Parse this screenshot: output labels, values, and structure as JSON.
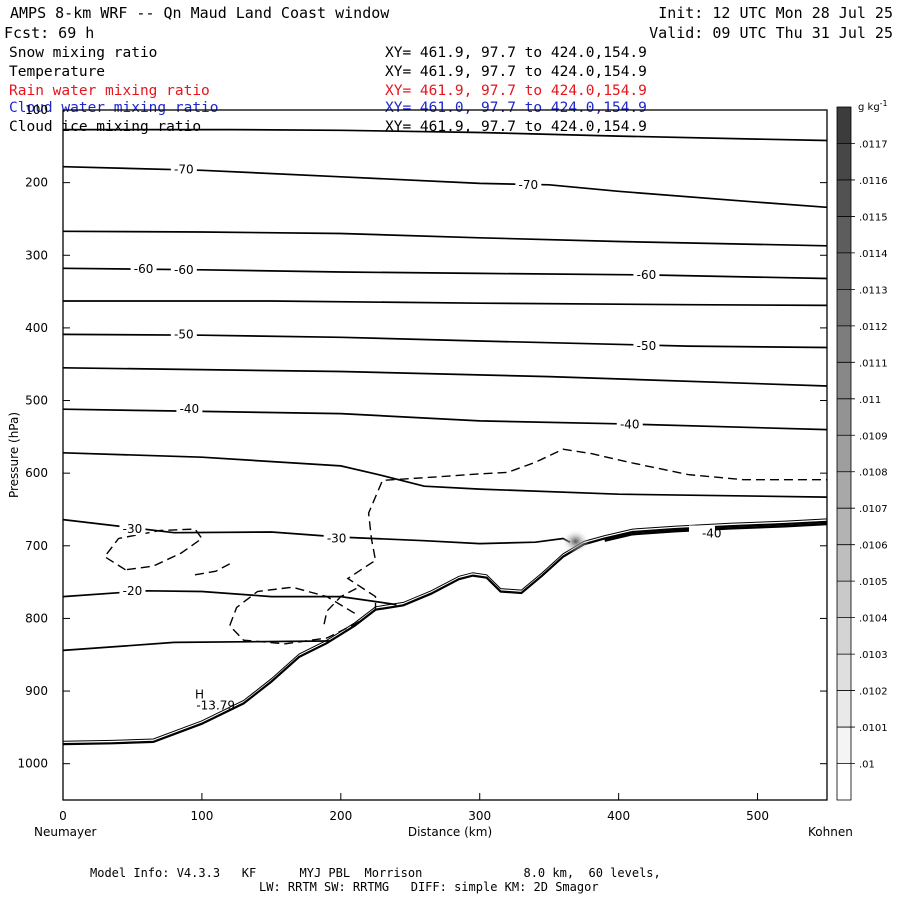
{
  "header": {
    "title": "AMPS 8-km WRF -- Qn Maud Land Coast window",
    "forecast": "Fcst:   69 h",
    "init": "Init: 12 UTC Mon 28 Jul 25",
    "valid": "Valid: 09 UTC Thu 31 Jul 25"
  },
  "fields": [
    {
      "name": "Snow mixing ratio",
      "xy": "XY= 461.9, 97.7 to 424.0,154.9",
      "color": "#000000"
    },
    {
      "name": "Temperature",
      "xy": "XY= 461.9, 97.7 to 424.0,154.9",
      "color": "#000000"
    },
    {
      "name": "Rain water mixing ratio",
      "xy": "XY= 461.9, 97.7 to 424.0,154.9",
      "color": "#e8141e"
    },
    {
      "name": "Cloud water mixing ratio",
      "xy": "XY= 461.0, 97.7 to 424.0,154.9",
      "color": "#1e28c8"
    },
    {
      "name": "Cloud ice mixing ratio",
      "xy": "XY= 461.9, 97.7 to 424.0,154.9",
      "color": "#000000"
    }
  ],
  "footer": {
    "line1": "Model Info: V4.3.3   KF      MYJ PBL  Morrison              8.0 km,  60 levels,",
    "line2": "LW: RRTM SW: RRTMG   DIFF: simple KM: 2D Smagor"
  },
  "colorbar": {
    "unit": "g kg",
    "unit_exp": "-1",
    "levels": [
      ".0117",
      ".0116",
      ".0115",
      ".0114",
      ".0113",
      ".0112",
      ".0111",
      ".011",
      ".0109",
      ".0108",
      ".0107",
      ".0106",
      ".0105",
      ".0104",
      ".0103",
      ".0102",
      ".0101",
      ".01"
    ]
  },
  "chart_data": {
    "type": "cross-section contour",
    "xlabel": "Distance (km)",
    "ylabel": "Pressure (hPa)",
    "x_left_label": "Neumayer",
    "x_right_label": "Kohnen",
    "xlim": [
      0,
      550
    ],
    "ylim": [
      1050,
      100
    ],
    "x_ticks": [
      0,
      100,
      200,
      300,
      400,
      500
    ],
    "y_ticks": [
      100,
      200,
      300,
      400,
      500,
      600,
      700,
      800,
      900,
      1000
    ],
    "y_tick_labels": [
      "100",
      "200",
      "300",
      "400",
      "500",
      "600",
      "700",
      "800",
      "900",
      "1000"
    ],
    "terrain": [
      [
        0,
        973
      ],
      [
        35,
        972
      ],
      [
        65,
        970
      ],
      [
        100,
        945
      ],
      [
        130,
        917
      ],
      [
        150,
        887
      ],
      [
        170,
        853
      ],
      [
        190,
        834
      ],
      [
        210,
        810
      ],
      [
        225,
        788
      ],
      [
        245,
        782
      ],
      [
        265,
        766
      ],
      [
        285,
        746
      ],
      [
        295,
        741
      ],
      [
        305,
        744
      ],
      [
        315,
        763
      ],
      [
        330,
        765
      ],
      [
        345,
        741
      ],
      [
        360,
        715
      ],
      [
        375,
        698
      ],
      [
        390,
        690
      ],
      [
        410,
        681
      ],
      [
        440,
        677
      ],
      [
        480,
        673
      ],
      [
        520,
        670
      ],
      [
        550,
        667
      ]
    ],
    "isotherms": [
      {
        "label": "-70",
        "points": [
          [
            0,
            127
          ],
          [
            120,
            127
          ],
          [
            200,
            128
          ],
          [
            300,
            131
          ],
          [
            400,
            136
          ],
          [
            500,
            140
          ],
          [
            550,
            142
          ]
        ]
      },
      {
        "label": "-70",
        "points": [
          [
            0,
            178
          ],
          [
            100,
            183
          ],
          [
            200,
            192
          ],
          [
            300,
            201
          ],
          [
            350,
            203
          ],
          [
            400,
            212
          ],
          [
            500,
            227
          ],
          [
            550,
            234
          ]
        ]
      },
      {
        "label": "",
        "points": [
          [
            0,
            267
          ],
          [
            100,
            268
          ],
          [
            200,
            270
          ],
          [
            300,
            276
          ],
          [
            400,
            281
          ],
          [
            550,
            287
          ]
        ]
      },
      {
        "label": "-60",
        "points": [
          [
            0,
            318
          ],
          [
            100,
            320
          ],
          [
            200,
            323
          ],
          [
            300,
            325
          ],
          [
            420,
            327
          ],
          [
            550,
            332
          ]
        ]
      },
      {
        "label": "",
        "points": [
          [
            0,
            363
          ],
          [
            150,
            363
          ],
          [
            300,
            366
          ],
          [
            450,
            368
          ],
          [
            550,
            369
          ]
        ]
      },
      {
        "label": "-50",
        "points": [
          [
            0,
            409
          ],
          [
            100,
            410
          ],
          [
            200,
            413
          ],
          [
            300,
            418
          ],
          [
            450,
            425
          ],
          [
            550,
            427
          ]
        ]
      },
      {
        "label": "",
        "points": [
          [
            0,
            455
          ],
          [
            200,
            460
          ],
          [
            350,
            467
          ],
          [
            550,
            480
          ]
        ]
      },
      {
        "label": "-40",
        "points": [
          [
            0,
            512
          ],
          [
            100,
            515
          ],
          [
            200,
            518
          ],
          [
            300,
            528
          ],
          [
            400,
            532
          ],
          [
            550,
            540
          ]
        ]
      },
      {
        "label": "",
        "points": [
          [
            0,
            572
          ],
          [
            100,
            578
          ],
          [
            200,
            590
          ],
          [
            225,
            601
          ],
          [
            260,
            618
          ],
          [
            300,
            622
          ],
          [
            400,
            629
          ],
          [
            550,
            633
          ]
        ]
      },
      {
        "label": "-30",
        "points": [
          [
            0,
            664
          ],
          [
            80,
            682
          ],
          [
            150,
            681
          ],
          [
            200,
            688
          ],
          [
            260,
            693
          ],
          [
            300,
            697
          ],
          [
            340,
            695
          ],
          [
            360,
            690
          ],
          [
            365,
            695
          ]
        ]
      },
      {
        "label": "-20",
        "points": [
          [
            0,
            770
          ],
          [
            60,
            762
          ],
          [
            100,
            763
          ],
          [
            150,
            770
          ],
          [
            200,
            770
          ],
          [
            240,
            781
          ]
        ]
      },
      {
        "label": "",
        "points": [
          [
            0,
            844
          ],
          [
            80,
            833
          ],
          [
            200,
            831
          ],
          [
            230,
            830
          ]
        ]
      }
    ],
    "dashed_contours": 4,
    "annotations": [
      {
        "text": "H",
        "x": 95,
        "y": 905
      },
      {
        "text": "-13.79",
        "x": 96,
        "y": 920
      },
      {
        "text": "-40",
        "x": 460,
        "y": 683
      }
    ]
  }
}
